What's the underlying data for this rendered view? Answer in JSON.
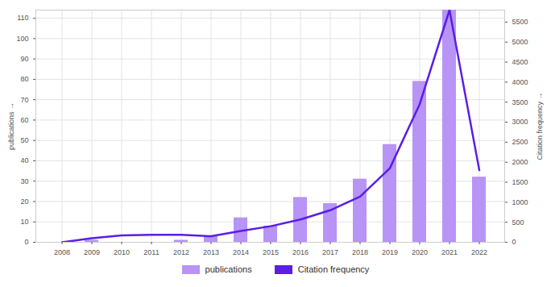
{
  "chart_data": {
    "type": "bar",
    "categories": [
      "2008",
      "2009",
      "2010",
      "2011",
      "2012",
      "2013",
      "2014",
      "2015",
      "2016",
      "2017",
      "2018",
      "2019",
      "2020",
      "2021",
      "2022"
    ],
    "series": [
      {
        "name": "publications",
        "type": "bar",
        "color": "#b794f6",
        "values": [
          0,
          1,
          0,
          0,
          1,
          3,
          12,
          8,
          22,
          19,
          31,
          48,
          79,
          114,
          32
        ]
      },
      {
        "name": "Citation frequency",
        "type": "line",
        "color": "#5a1ee6",
        "axis": "y2",
        "values": [
          0,
          100,
          170,
          185,
          185,
          150,
          280,
          400,
          570,
          800,
          1140,
          1850,
          3450,
          5800,
          1800
        ]
      }
    ],
    "ylabel": "publications",
    "y2label": "Citation frequency",
    "ylim": [
      0,
      114
    ],
    "yticks": [
      0,
      10,
      20,
      30,
      40,
      50,
      60,
      70,
      80,
      90,
      100,
      110
    ],
    "y2lim": [
      0,
      5800
    ],
    "y2ticks": [
      0,
      500,
      1000,
      1500,
      2000,
      2500,
      3000,
      3500,
      4000,
      4500,
      5000,
      5500
    ],
    "grid": true,
    "legend": "bottom"
  }
}
